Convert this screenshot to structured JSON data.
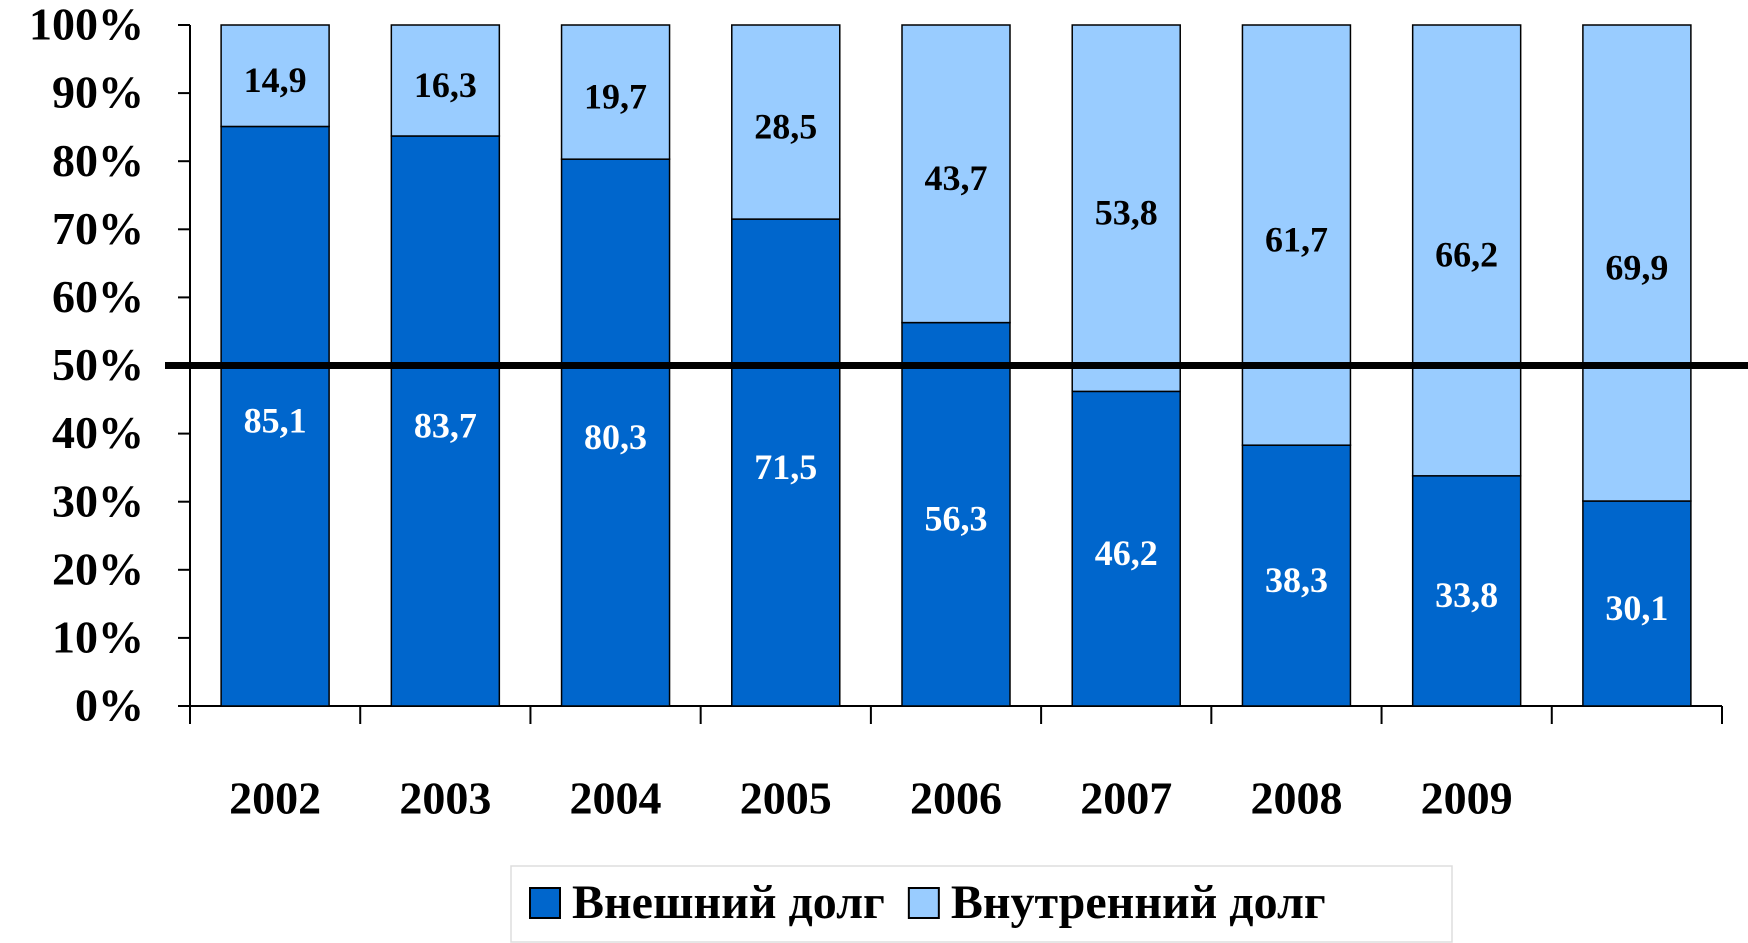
{
  "chart_data": {
    "type": "stacked_bar",
    "categories": [
      "2002",
      "2003",
      "2004",
      "2005",
      "2006",
      "2007",
      "2008",
      "2009",
      null
    ],
    "series": [
      {
        "name": "Внешний долг",
        "color": "#0066cc",
        "label_color": "#ffffff",
        "values": [
          85.1,
          83.7,
          80.3,
          71.5,
          56.3,
          46.2,
          38.3,
          33.8,
          30.1
        ],
        "value_labels": [
          "85,1",
          "83,7",
          "80,3",
          "71,5",
          "56,3",
          "46,2",
          "38,3",
          "33,8",
          "30,1"
        ]
      },
      {
        "name": "Внутренний долг",
        "color": "#99ccff",
        "label_color": "#000000",
        "values": [
          14.9,
          16.3,
          19.7,
          28.5,
          43.7,
          53.8,
          61.7,
          66.2,
          69.9
        ],
        "value_labels": [
          "14,9",
          "16,3",
          "19,7",
          "28,5",
          "43,7",
          "53,8",
          "61,7",
          "66,2",
          "69,9"
        ]
      }
    ],
    "ylim": [
      0,
      100
    ],
    "yticks": [
      {
        "value": 0,
        "label": "0%"
      },
      {
        "value": 10,
        "label": "10%"
      },
      {
        "value": 20,
        "label": "20%"
      },
      {
        "value": 30,
        "label": "30%"
      },
      {
        "value": 40,
        "label": "40%"
      },
      {
        "value": 50,
        "label": "50%"
      },
      {
        "value": 60,
        "label": "60%"
      },
      {
        "value": 70,
        "label": "70%"
      },
      {
        "value": 80,
        "label": "80%"
      },
      {
        "value": 90,
        "label": "90%"
      },
      {
        "value": 100,
        "label": "100%"
      }
    ],
    "reference_line": 50,
    "legend": "bottom"
  }
}
